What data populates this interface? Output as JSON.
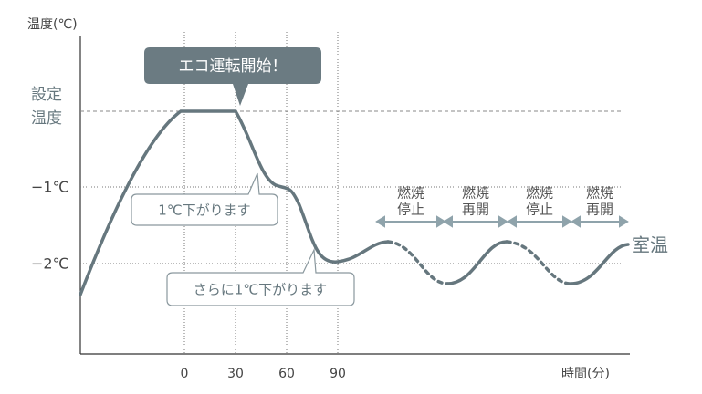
{
  "axis": {
    "y_title": "温度(℃)",
    "x_title": "時間(分)",
    "x_ticks": [
      "0",
      "30",
      "60",
      "90"
    ],
    "y_labels": {
      "set_temperature": [
        "設定",
        "温度"
      ],
      "minus_1": "−1℃",
      "minus_2": "−2℃"
    }
  },
  "callouts": [
    "エコ運転開始！",
    "1℃下がります",
    "さらに1℃下がります"
  ],
  "phases": [
    [
      "燃焼",
      "停止"
    ],
    [
      "燃焼",
      "再開"
    ],
    [
      "燃焼",
      "停止"
    ],
    [
      "燃焼",
      "再開"
    ]
  ],
  "room_temperature": "室温"
}
